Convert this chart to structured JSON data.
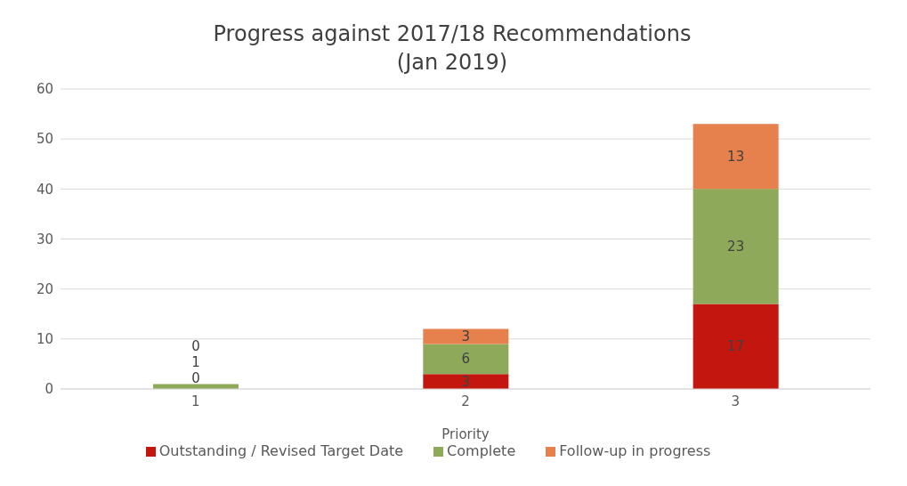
{
  "chart_data": {
    "type": "bar",
    "title": "Progress against 2017/18 Recommendations\n(Jan 2019)",
    "xlabel": "Priority",
    "categories": [
      "1",
      "2",
      "3"
    ],
    "stacked": true,
    "series": [
      {
        "name": "Outstanding / Revised Target Date",
        "color": "#c3160f",
        "values": [
          0,
          3,
          17
        ]
      },
      {
        "name": "Complete",
        "color": "#8fa95a",
        "values": [
          1,
          6,
          23
        ]
      },
      {
        "name": "Follow-up in progress",
        "color": "#e6814d",
        "values": [
          0,
          3,
          13
        ]
      }
    ],
    "ylim": [
      0,
      60
    ],
    "yticks": [
      0,
      10,
      20,
      30,
      40,
      50,
      60
    ],
    "grid": "y",
    "legend": "bottom",
    "data_labels": true
  }
}
